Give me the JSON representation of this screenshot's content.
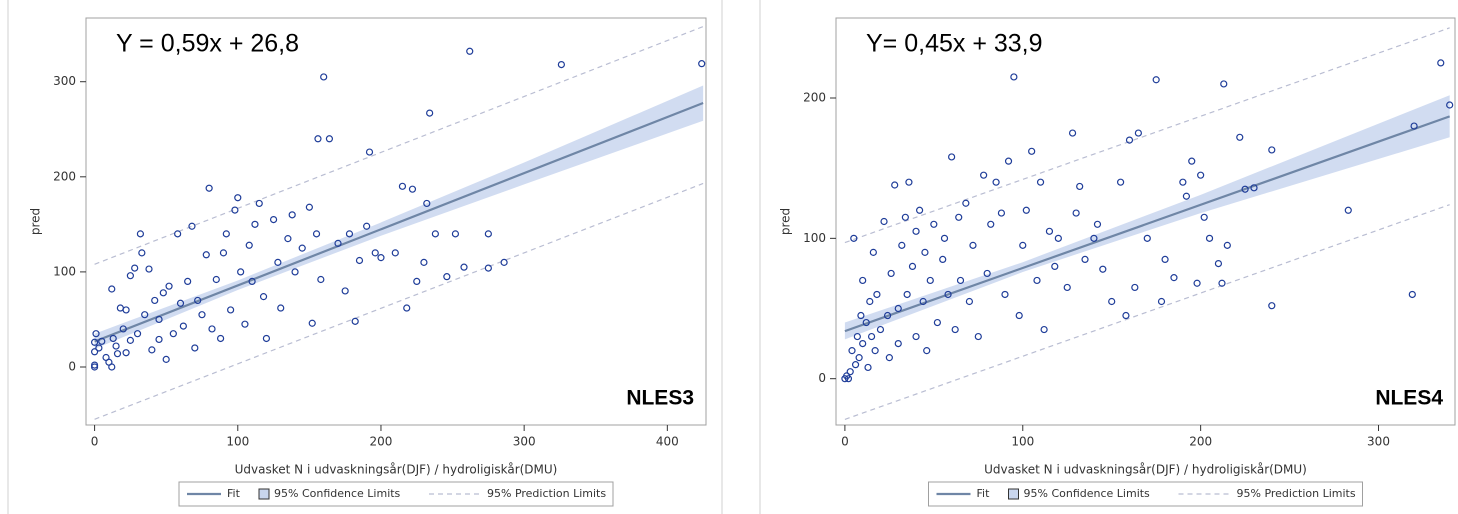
{
  "chart_data": [
    {
      "type": "scatter",
      "annotation": "Y = 0,59x + 26,8",
      "label": "NLES3",
      "x_label": "Udvasket N i udvaskningsår(DJF) / hydroligiskår(DMU)",
      "y_label": "pred",
      "xlim": [
        -6,
        427
      ],
      "ylim": [
        -61,
        367
      ],
      "xticks": [
        0,
        100,
        200,
        300,
        400
      ],
      "yticks": [
        0,
        100,
        200,
        300
      ],
      "points": {
        "color": "#1f3d99",
        "x": [
          0,
          0,
          0,
          0,
          1,
          3,
          5,
          8,
          10,
          12,
          12,
          13,
          15,
          16,
          18,
          20,
          22,
          22,
          25,
          25,
          28,
          30,
          32,
          33,
          35,
          38,
          40,
          42,
          45,
          45,
          48,
          50,
          52,
          55,
          58,
          60,
          62,
          65,
          68,
          70,
          72,
          75,
          78,
          80,
          82,
          85,
          88,
          90,
          92,
          95,
          98,
          100,
          102,
          105,
          108,
          110,
          112,
          115,
          118,
          120,
          125,
          128,
          130,
          135,
          138,
          140,
          145,
          150,
          152,
          155,
          158,
          160,
          156,
          164,
          170,
          175,
          178,
          182,
          185,
          190,
          192,
          196,
          200,
          210,
          215,
          218,
          222,
          225,
          230,
          232,
          234,
          238,
          246,
          252,
          258,
          262,
          275,
          275,
          286,
          326,
          424
        ],
        "y": [
          0,
          2,
          16,
          26,
          35,
          20,
          27,
          10,
          5,
          0,
          82,
          30,
          22,
          14,
          62,
          40,
          60,
          15,
          28,
          96,
          104,
          35,
          140,
          120,
          55,
          103,
          18,
          70,
          50,
          29,
          78,
          8,
          85,
          35,
          140,
          67,
          43,
          90,
          148,
          20,
          70,
          55,
          118,
          188,
          40,
          92,
          30,
          120,
          140,
          60,
          165,
          178,
          100,
          45,
          128,
          90,
          150,
          172,
          74,
          30,
          155,
          110,
          62,
          135,
          160,
          100,
          125,
          168,
          46,
          140,
          92,
          305,
          240,
          240,
          130,
          80,
          140,
          48,
          112,
          148,
          226,
          120,
          115,
          120,
          190,
          62,
          187,
          90,
          110,
          172,
          267,
          140,
          95,
          140,
          105,
          332,
          140,
          104,
          110,
          318,
          319
        ]
      },
      "fit": {
        "name": "Fit",
        "color": "#6f86a6",
        "x": [
          0,
          425
        ],
        "values": [
          26.8,
          277.6
        ]
      },
      "confidence": {
        "name": "95% Confidence Limits",
        "color": "#c9d6ee",
        "x": [
          0,
          100,
          200,
          300,
          425
        ],
        "lower": [
          19,
          81,
          138,
          192,
          259
        ],
        "upper": [
          35,
          91,
          152,
          215,
          296
        ]
      },
      "prediction": {
        "name": "95% Prediction Limits",
        "color": "#b9bdd2",
        "x": [
          0,
          425
        ],
        "lower": [
          -55,
          193
        ],
        "upper": [
          108,
          358
        ]
      }
    },
    {
      "type": "scatter",
      "annotation": "Y= 0,45x + 33,9",
      "label": "NLES4",
      "x_label": "Udvasket N i udvaskningsår(DJF) / hydroligiskår(DMU)",
      "y_label": "pred",
      "xlim": [
        -5,
        343
      ],
      "ylim": [
        -33,
        257
      ],
      "xticks": [
        0,
        100,
        200,
        300
      ],
      "yticks": [
        0,
        100,
        200
      ],
      "points": {
        "color": "#1f3d99",
        "x": [
          0,
          1,
          2,
          3,
          4,
          5,
          6,
          7,
          8,
          9,
          10,
          10,
          12,
          13,
          14,
          15,
          16,
          17,
          18,
          20,
          22,
          24,
          25,
          26,
          28,
          30,
          30,
          32,
          34,
          35,
          36,
          38,
          40,
          40,
          42,
          44,
          45,
          46,
          48,
          50,
          52,
          55,
          56,
          58,
          60,
          62,
          64,
          65,
          68,
          70,
          72,
          75,
          78,
          80,
          82,
          85,
          88,
          90,
          92,
          95,
          98,
          100,
          102,
          105,
          108,
          110,
          112,
          115,
          118,
          120,
          125,
          128,
          130,
          132,
          135,
          140,
          142,
          145,
          150,
          155,
          158,
          160,
          163,
          165,
          170,
          175,
          178,
          180,
          185,
          190,
          192,
          195,
          198,
          200,
          202,
          205,
          210,
          212,
          213,
          215,
          222,
          225,
          230,
          240,
          240,
          283,
          319,
          320,
          335,
          340
        ],
        "y": [
          0,
          2,
          0,
          5,
          20,
          100,
          10,
          30,
          15,
          45,
          70,
          25,
          40,
          8,
          55,
          30,
          90,
          20,
          60,
          35,
          112,
          45,
          15,
          75,
          138,
          50,
          25,
          95,
          115,
          60,
          140,
          80,
          30,
          105,
          120,
          55,
          90,
          20,
          70,
          110,
          40,
          85,
          100,
          60,
          158,
          35,
          115,
          70,
          125,
          55,
          95,
          30,
          145,
          75,
          110,
          140,
          118,
          60,
          155,
          215,
          45,
          95,
          120,
          162,
          70,
          140,
          35,
          105,
          80,
          100,
          65,
          175,
          118,
          137,
          85,
          100,
          110,
          78,
          55,
          140,
          45,
          170,
          65,
          175,
          100,
          213,
          55,
          85,
          72,
          140,
          130,
          155,
          68,
          145,
          115,
          100,
          82,
          68,
          210,
          95,
          172,
          135,
          136,
          52,
          163,
          120,
          60,
          180,
          225,
          195
        ]
      },
      "fit": {
        "name": "Fit",
        "color": "#6f86a6",
        "x": [
          0,
          340
        ],
        "values": [
          33.9,
          186.9
        ]
      },
      "confidence": {
        "name": "95% Confidence Limits",
        "color": "#c9d6ee",
        "x": [
          0,
          100,
          200,
          340
        ],
        "lower": [
          28,
          76,
          118,
          172
        ],
        "upper": [
          40,
          83,
          131,
          202
        ]
      },
      "prediction": {
        "name": "95% Prediction Limits",
        "color": "#b9bdd2",
        "x": [
          0,
          340
        ],
        "lower": [
          -29,
          124
        ],
        "upper": [
          97,
          250
        ]
      }
    }
  ]
}
